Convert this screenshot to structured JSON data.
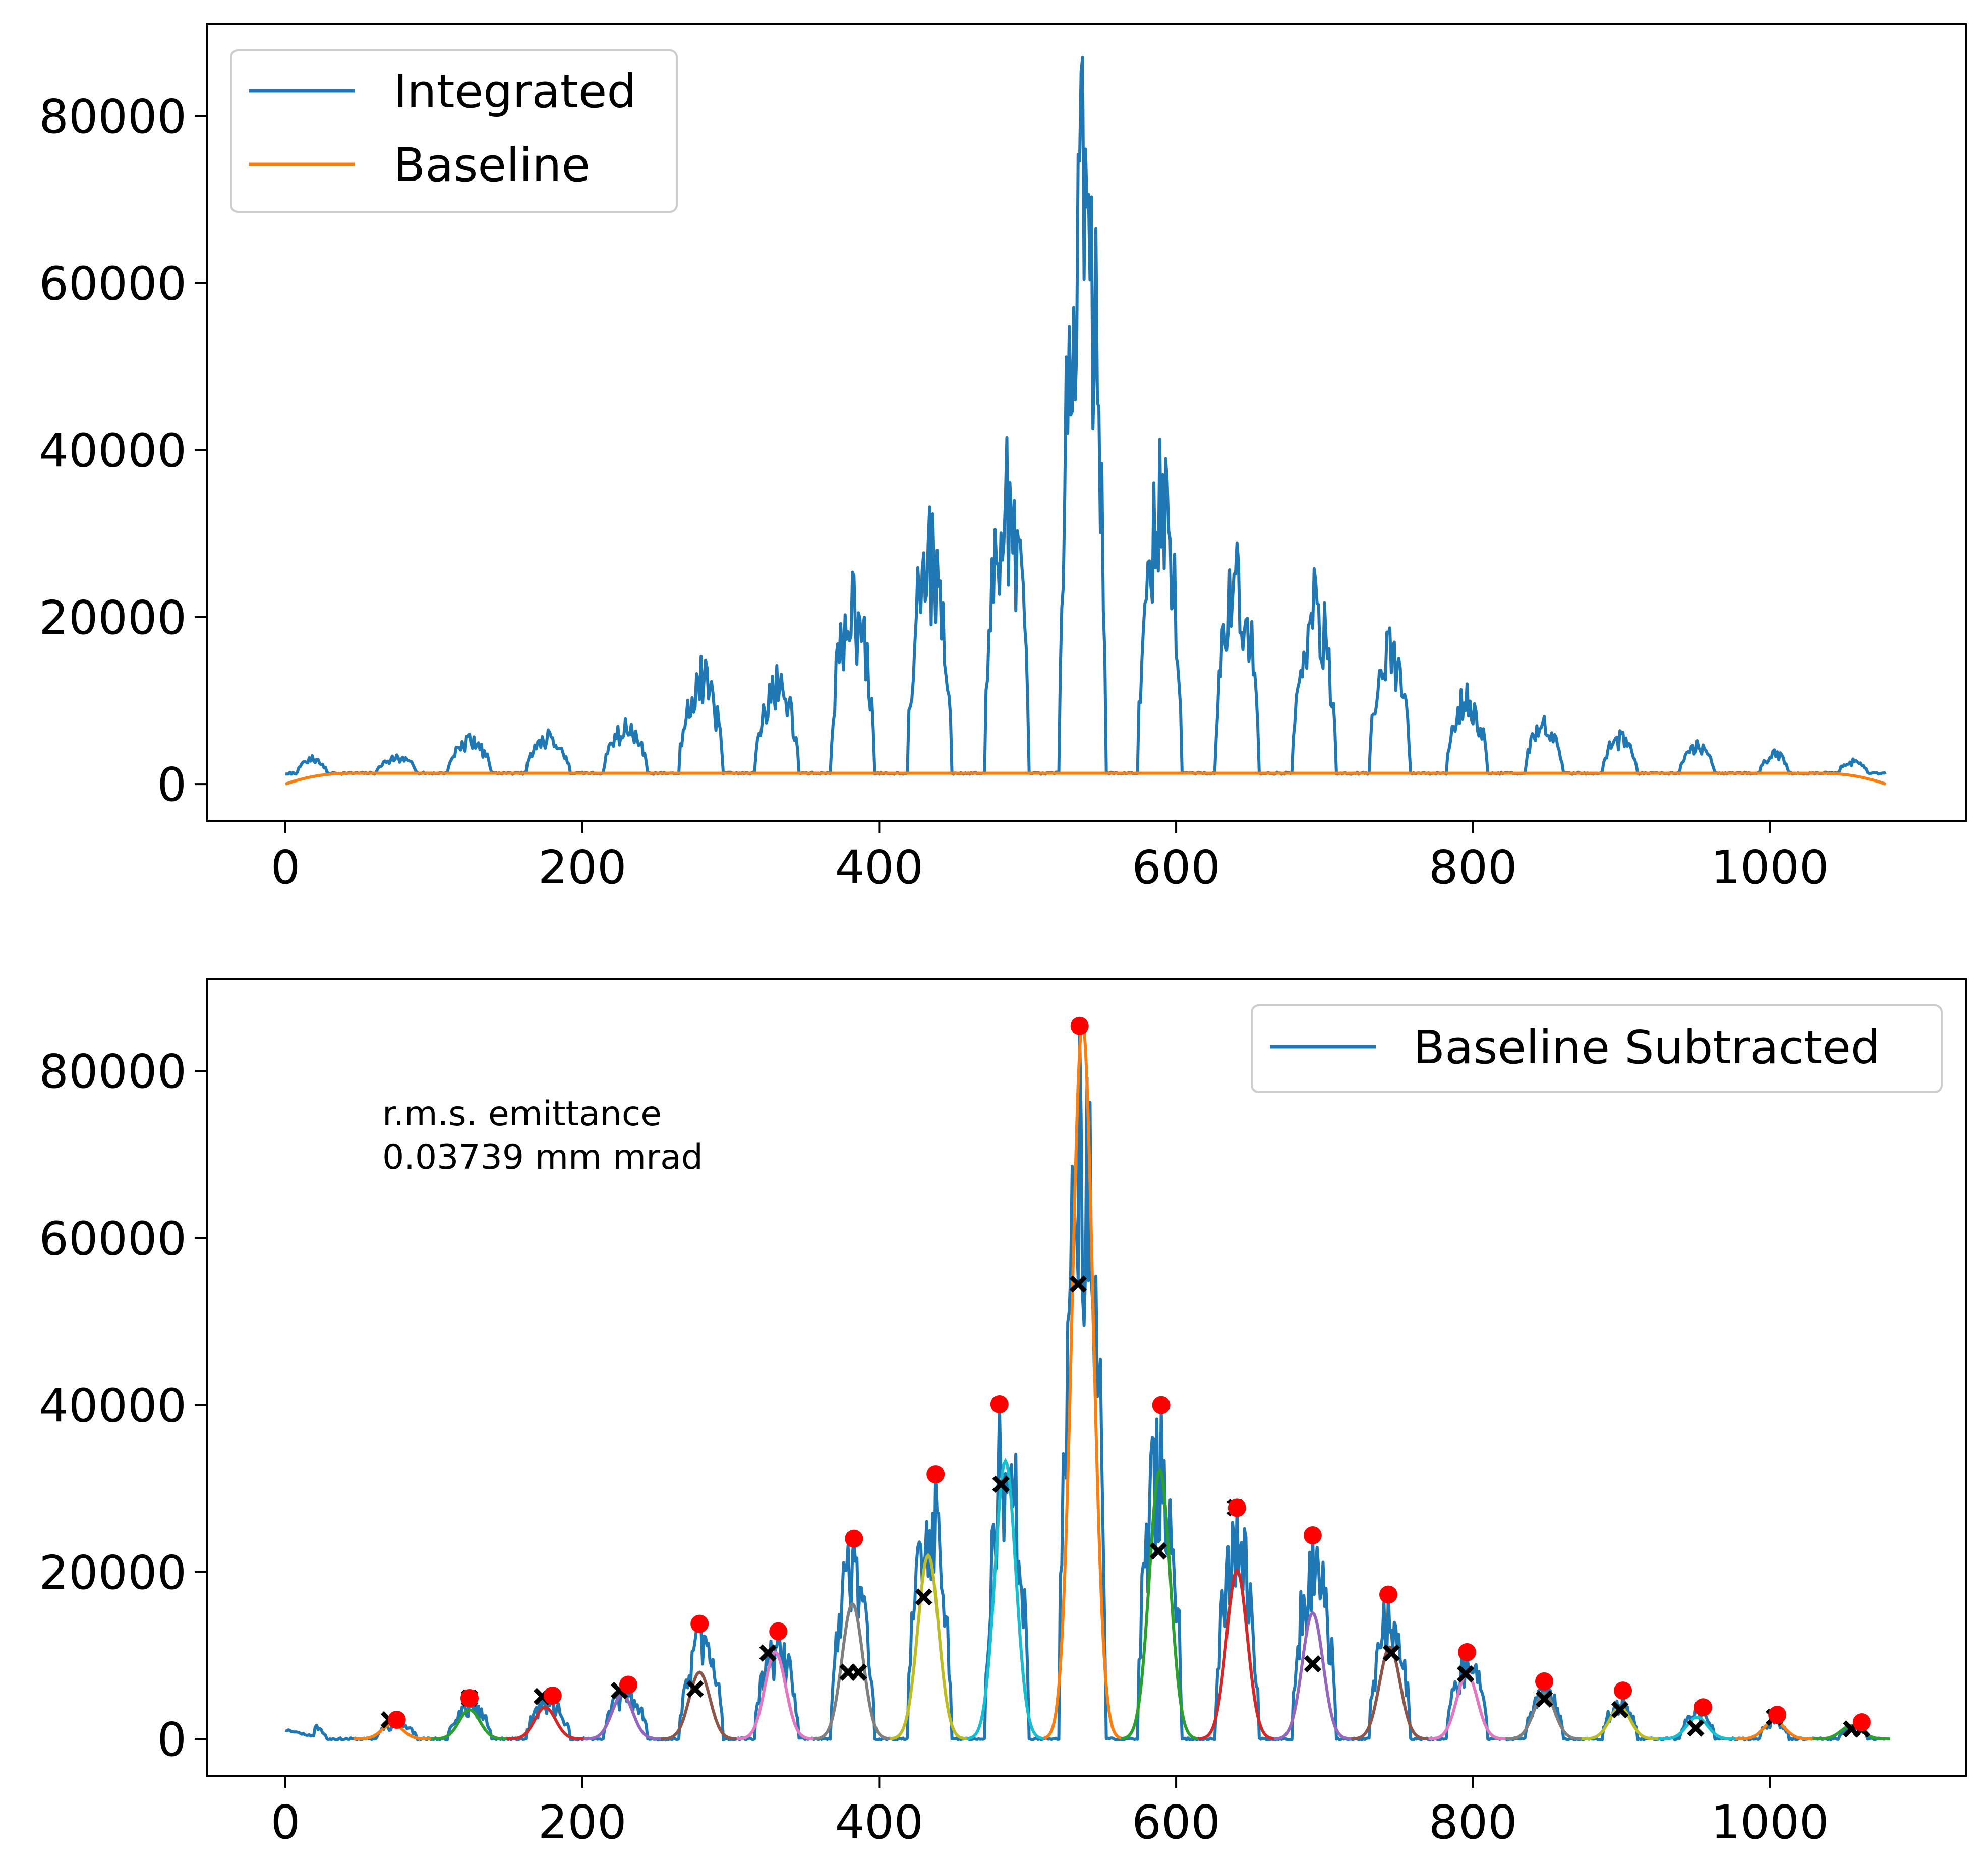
{
  "colors": {
    "integrated": "#1f77b4",
    "baseline": "#ff7f0e",
    "subtracted": "#1f77b4",
    "peak_marker": "#ff0000",
    "valley_marker": "#000000",
    "fit_cycle": [
      "#ff7f0e",
      "#2ca02c",
      "#d62728",
      "#9467bd",
      "#8c564b",
      "#e377c2",
      "#7f7f7f",
      "#bcbd22",
      "#17becf"
    ]
  },
  "chart_data": [
    {
      "type": "line",
      "title": "",
      "xlabel": "",
      "ylabel": "",
      "xlim": [
        -53,
        1132
      ],
      "ylim": [
        -4400,
        91000
      ],
      "xticks": [
        "0",
        "200",
        "400",
        "600",
        "800",
        "1000"
      ],
      "yticks": [
        "0",
        "20000",
        "40000",
        "60000",
        "80000"
      ],
      "legend": {
        "placement": "upper left",
        "entries": [
          "Integrated",
          "Baseline"
        ]
      },
      "baseline_level": 1300,
      "baseline_ends": 0,
      "series": [
        {
          "name": "Integrated",
          "envelope": {
            "x_range": [
              0,
              1078
            ],
            "flat_level": 1300,
            "start_level": 1200,
            "bumps": [
              {
                "center": 18,
                "top": 3400,
                "half_width": 10
              },
              {
                "center": 75,
                "top": 3500,
                "half_width": 14
              },
              {
                "center": 124,
                "top": 6000,
                "half_width": 15
              },
              {
                "center": 177,
                "top": 6500,
                "half_width": 15
              },
              {
                "center": 229,
                "top": 7800,
                "half_width": 15
              },
              {
                "center": 280,
                "top": 15300,
                "half_width": 15
              },
              {
                "center": 331,
                "top": 14200,
                "half_width": 15
              },
              {
                "center": 382,
                "top": 25400,
                "half_width": 15
              },
              {
                "center": 434,
                "top": 33200,
                "half_width": 15
              },
              {
                "center": 486,
                "top": 41500,
                "half_width": 15
              },
              {
                "center": 537,
                "top": 87000,
                "half_width": 16
              },
              {
                "center": 589,
                "top": 41300,
                "half_width": 15
              },
              {
                "center": 641,
                "top": 28900,
                "half_width": 15
              },
              {
                "center": 693,
                "top": 25800,
                "half_width": 15
              },
              {
                "center": 744,
                "top": 18700,
                "half_width": 14
              },
              {
                "center": 796,
                "top": 12000,
                "half_width": 14
              },
              {
                "center": 848,
                "top": 8100,
                "half_width": 13
              },
              {
                "center": 899,
                "top": 6400,
                "half_width": 12
              },
              {
                "center": 951,
                "top": 5200,
                "half_width": 12
              },
              {
                "center": 1003,
                "top": 4100,
                "half_width": 10
              },
              {
                "center": 1056,
                "top": 3000,
                "half_width": 10
              }
            ]
          }
        },
        {
          "name": "Baseline",
          "description_free": true
        }
      ]
    },
    {
      "type": "line",
      "title": "",
      "xlabel": "",
      "ylabel": "",
      "xlim": [
        -53,
        1132
      ],
      "ylim": [
        -4400,
        91000
      ],
      "xticks": [
        "0",
        "200",
        "400",
        "600",
        "800",
        "1000"
      ],
      "yticks": [
        "0",
        "20000",
        "40000",
        "60000",
        "80000"
      ],
      "legend": {
        "placement": "upper right",
        "entries": [
          "Baseline Subtracted"
        ]
      },
      "annotation": {
        "line1": "r.m.s. emittance",
        "line2": "0.03739 mm mrad"
      },
      "series": [
        {
          "name": "Baseline Subtracted"
        }
      ],
      "peaks": [
        {
          "x": 75,
          "y": 2300
        },
        {
          "x": 124,
          "y": 4900
        },
        {
          "x": 180,
          "y": 5200
        },
        {
          "x": 231,
          "y": 6500
        },
        {
          "x": 279,
          "y": 13800
        },
        {
          "x": 332,
          "y": 12900
        },
        {
          "x": 383,
          "y": 24000
        },
        {
          "x": 438,
          "y": 31700
        },
        {
          "x": 481,
          "y": 40100
        },
        {
          "x": 535,
          "y": 85400
        },
        {
          "x": 590,
          "y": 40000
        },
        {
          "x": 641,
          "y": 27700
        },
        {
          "x": 692,
          "y": 24400
        },
        {
          "x": 743,
          "y": 17300
        },
        {
          "x": 796,
          "y": 10400
        },
        {
          "x": 848,
          "y": 6900
        },
        {
          "x": 901,
          "y": 5800
        },
        {
          "x": 955,
          "y": 3800
        },
        {
          "x": 1005,
          "y": 2900
        },
        {
          "x": 1062,
          "y": 2000
        }
      ],
      "valleys": [
        {
          "x": 70,
          "y": 2300
        },
        {
          "x": 124,
          "y": 4900
        },
        {
          "x": 173,
          "y": 5100
        },
        {
          "x": 225,
          "y": 5800
        },
        {
          "x": 276,
          "y": 6000
        },
        {
          "x": 325,
          "y": 10300
        },
        {
          "x": 379,
          "y": 8000
        },
        {
          "x": 386,
          "y": 8000
        },
        {
          "x": 430,
          "y": 17000
        },
        {
          "x": 482,
          "y": 30500
        },
        {
          "x": 534,
          "y": 54500
        },
        {
          "x": 588,
          "y": 22500
        },
        {
          "x": 640,
          "y": 27700
        },
        {
          "x": 692,
          "y": 9000
        },
        {
          "x": 745,
          "y": 10300
        },
        {
          "x": 795,
          "y": 7800
        },
        {
          "x": 848,
          "y": 4800
        },
        {
          "x": 899,
          "y": 3500
        },
        {
          "x": 950,
          "y": 1300
        },
        {
          "x": 1003,
          "y": 2600
        },
        {
          "x": 1055,
          "y": 1200
        },
        {
          "x": 1062,
          "y": 1200
        }
      ],
      "fits": [
        {
          "center": 72,
          "amp": 1800,
          "sigma": 7
        },
        {
          "center": 124,
          "amp": 3500,
          "sigma": 7
        },
        {
          "center": 175,
          "amp": 3800,
          "sigma": 7
        },
        {
          "center": 227,
          "amp": 5300,
          "sigma": 7
        },
        {
          "center": 279,
          "amp": 8000,
          "sigma": 7
        },
        {
          "center": 330,
          "amp": 10400,
          "sigma": 7
        },
        {
          "center": 382,
          "amp": 16200,
          "sigma": 7
        },
        {
          "center": 433,
          "amp": 22000,
          "sigma": 7
        },
        {
          "center": 485,
          "amp": 33300,
          "sigma": 7
        },
        {
          "center": 537,
          "amp": 86000,
          "sigma": 7
        },
        {
          "center": 589,
          "amp": 32200,
          "sigma": 7
        },
        {
          "center": 641,
          "amp": 20200,
          "sigma": 7
        },
        {
          "center": 692,
          "amp": 15100,
          "sigma": 7
        },
        {
          "center": 744,
          "amp": 11000,
          "sigma": 7
        },
        {
          "center": 796,
          "amp": 7800,
          "sigma": 7
        },
        {
          "center": 848,
          "amp": 5500,
          "sigma": 7
        },
        {
          "center": 899,
          "amp": 3800,
          "sigma": 7
        },
        {
          "center": 951,
          "amp": 2600,
          "sigma": 7
        },
        {
          "center": 1003,
          "amp": 2200,
          "sigma": 7
        },
        {
          "center": 1055,
          "amp": 1600,
          "sigma": 7
        }
      ]
    }
  ]
}
